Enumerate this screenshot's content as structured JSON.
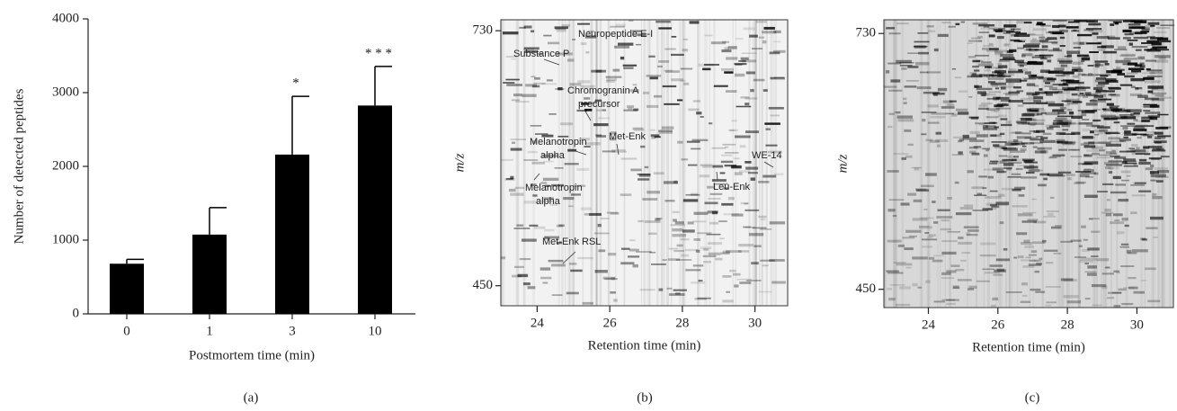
{
  "chart_data": [
    {
      "type": "bar",
      "panel_label": "(a)",
      "xlabel": "Postmortem time (min)",
      "ylabel": "Number of detected peptides",
      "categories": [
        "0",
        "1",
        "3",
        "10"
      ],
      "values": [
        680,
        1075,
        2160,
        2825
      ],
      "errors": [
        60,
        365,
        790,
        530
      ],
      "annotations": [
        null,
        null,
        "*",
        "* * *"
      ],
      "color": "#000000",
      "ylim": [
        0,
        4000
      ],
      "yticks": [
        0,
        1000,
        2000,
        3000,
        4000
      ]
    },
    {
      "type": "image",
      "panel_label": "(b)",
      "xlabel": "Retention time (min)",
      "ylabel": "m/z",
      "xlim": [
        23,
        30.9
      ],
      "xticks": [
        24,
        26,
        28,
        30
      ],
      "ylim": [
        428,
        742
      ],
      "yticks": [
        450,
        730
      ],
      "annotations": [
        [
          "Neuropeptide E-I"
        ],
        [
          "Substance P"
        ],
        [
          "Chromogranin A",
          "precursor"
        ],
        [
          "Melanotropin",
          "alpha"
        ],
        [
          "Met-Enk"
        ],
        [
          "WE-14"
        ],
        [
          "Leu-Enk"
        ],
        [
          "Melanotropin",
          "alpha"
        ],
        [
          "Met-Enk RSL"
        ]
      ]
    },
    {
      "type": "image",
      "panel_label": "(c)",
      "xlabel": "Retention time (min)",
      "ylabel": "m/z",
      "xlim": [
        22.72,
        31.05
      ],
      "xticks": [
        24,
        26,
        28,
        30
      ],
      "ylim": [
        430,
        745
      ],
      "yticks": [
        450,
        730
      ]
    }
  ]
}
